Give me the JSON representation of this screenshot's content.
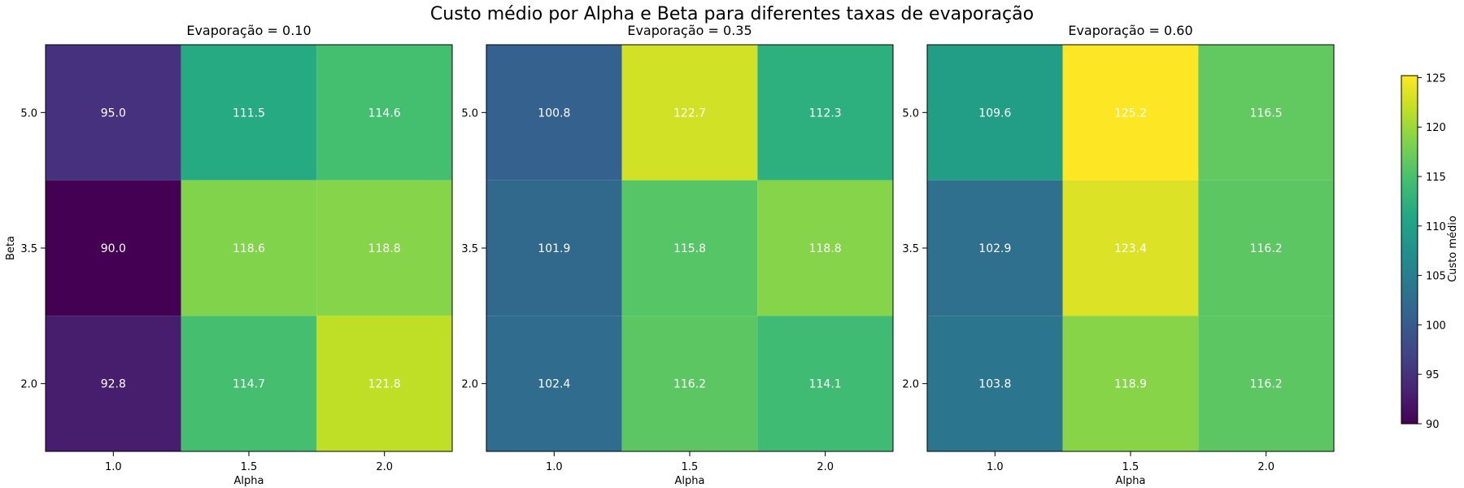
{
  "figure": {
    "title": "Custo médio por Alpha e Beta para diferentes taxas de evaporação"
  },
  "chart_data": [
    {
      "type": "heatmap",
      "title": "Evaporação = 0.10",
      "xlabel": "Alpha",
      "ylabel": "Beta",
      "x": [
        "1.0",
        "1.5",
        "2.0"
      ],
      "y": [
        "5.0",
        "3.5",
        "2.0"
      ],
      "values": [
        [
          95.0,
          111.5,
          114.6
        ],
        [
          90.0,
          118.6,
          118.8
        ],
        [
          92.8,
          114.7,
          121.8
        ]
      ],
      "value_format": "0.1f",
      "colormap": "viridis",
      "vmin": 90,
      "vmax": 125.2
    },
    {
      "type": "heatmap",
      "title": "Evaporação = 0.35",
      "xlabel": "Alpha",
      "ylabel": "",
      "x": [
        "1.0",
        "1.5",
        "2.0"
      ],
      "y": [
        "5.0",
        "3.5",
        "2.0"
      ],
      "values": [
        [
          100.8,
          122.7,
          112.3
        ],
        [
          101.9,
          115.8,
          118.8
        ],
        [
          102.4,
          116.2,
          114.1
        ]
      ],
      "value_format": "0.1f",
      "colormap": "viridis",
      "vmin": 90,
      "vmax": 125.2
    },
    {
      "type": "heatmap",
      "title": "Evaporação = 0.60",
      "xlabel": "Alpha",
      "ylabel": "",
      "x": [
        "1.0",
        "1.5",
        "2.0"
      ],
      "y": [
        "5.0",
        "3.5",
        "2.0"
      ],
      "values": [
        [
          109.6,
          125.2,
          116.5
        ],
        [
          102.9,
          123.4,
          116.2
        ],
        [
          103.8,
          118.9,
          116.2
        ]
      ],
      "value_format": "0.1f",
      "colormap": "viridis",
      "vmin": 90,
      "vmax": 125.2
    }
  ],
  "colorbar": {
    "label": "Custo médio",
    "ticks": [
      90,
      95,
      100,
      105,
      110,
      115,
      120,
      125
    ],
    "range": [
      90,
      125.2
    ],
    "colormap": "viridis"
  }
}
